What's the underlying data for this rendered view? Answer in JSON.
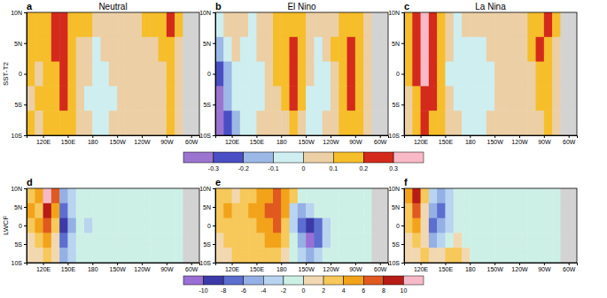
{
  "chart_data": [
    {
      "type": "contour",
      "label": "a",
      "title": "Neutral",
      "ylabel": "SST-T2",
      "x": [
        105,
        115,
        125,
        135,
        145,
        155,
        165,
        175,
        185,
        195,
        205,
        215,
        225,
        235,
        245,
        255,
        265,
        275,
        285,
        295,
        305
      ],
      "y": [
        8,
        4,
        0,
        -4,
        -8
      ],
      "cells": [
        [
          0.15,
          0.12,
          0.1,
          0.22,
          0.25,
          0.15,
          0.12,
          0.15,
          0.05,
          0.05,
          0.05,
          0.05,
          0.05,
          0.05,
          0.1,
          0.12,
          0.15,
          0.22,
          0.1,
          null,
          null
        ],
        [
          0.12,
          0.15,
          0.1,
          0.2,
          0.25,
          0.12,
          0.08,
          0.05,
          -0.05,
          0.05,
          0.05,
          0.05,
          0.05,
          0.05,
          0.05,
          0.05,
          0.12,
          0.15,
          0.05,
          null,
          null
        ],
        [
          0.1,
          0.05,
          0.12,
          0.18,
          0.25,
          0.12,
          0.05,
          0.05,
          -0.05,
          -0.05,
          0.05,
          0.05,
          0.05,
          0.05,
          0.05,
          0.05,
          0.05,
          0.12,
          0.05,
          null,
          null
        ],
        [
          0.05,
          0.1,
          0.15,
          0.15,
          0.22,
          0.15,
          0.05,
          -0.05,
          -0.05,
          -0.05,
          -0.05,
          0.05,
          0.05,
          0.05,
          0.05,
          0.05,
          0.05,
          0.1,
          0.05,
          null,
          null
        ],
        [
          0.12,
          0.05,
          0.18,
          0.12,
          0.15,
          0.12,
          0.05,
          0.05,
          -0.05,
          -0.05,
          0.05,
          0.05,
          0.05,
          0.05,
          0.05,
          0.05,
          0.05,
          0.1,
          0.05,
          null,
          null
        ]
      ],
      "xlim": [
        100,
        310
      ],
      "ylim": [
        -10,
        10
      ],
      "xticks": [
        {
          "value": 120,
          "label": "120E"
        },
        {
          "value": 150,
          "label": "150E"
        },
        180,
        {
          "value": 210,
          "label": "150W"
        },
        {
          "value": 240,
          "label": "120W"
        },
        {
          "value": 270,
          "label": "90W"
        },
        {
          "value": 300,
          "label": "60W"
        }
      ],
      "yticks": [
        {
          "value": 10,
          "label": "10N"
        },
        {
          "value": 5,
          "label": "5N"
        },
        0,
        {
          "value": -5,
          "label": "5S"
        },
        {
          "value": -10,
          "label": "10S"
        }
      ]
    },
    {
      "type": "contour",
      "label": "b",
      "title": "El Nino",
      "x": [
        105,
        115,
        125,
        135,
        145,
        155,
        165,
        175,
        185,
        195,
        205,
        215,
        225,
        235,
        245,
        255,
        265,
        275,
        285,
        295,
        305
      ],
      "y": [
        8,
        4,
        0,
        -4,
        -8
      ],
      "cells": [
        [
          -0.05,
          0.05,
          0.05,
          0.05,
          -0.05,
          0.05,
          0.05,
          0.12,
          0.12,
          0.15,
          0.1,
          0.05,
          0.05,
          0.05,
          0.05,
          0.1,
          0.15,
          0.12,
          0.05,
          null,
          null
        ],
        [
          -0.15,
          -0.05,
          0.05,
          -0.05,
          -0.05,
          0.05,
          0.05,
          0.12,
          0.15,
          0.2,
          0.1,
          0.05,
          -0.05,
          0.05,
          0.1,
          0.15,
          0.22,
          0.15,
          0.05,
          null,
          null
        ],
        [
          -0.25,
          -0.15,
          -0.05,
          -0.05,
          -0.05,
          -0.05,
          0.05,
          0.1,
          0.15,
          0.25,
          0.12,
          0.05,
          -0.05,
          -0.05,
          0.05,
          0.15,
          0.25,
          0.12,
          0.05,
          null,
          null
        ],
        [
          -0.32,
          -0.2,
          -0.1,
          -0.05,
          -0.05,
          -0.05,
          0.05,
          0.05,
          0.12,
          0.2,
          0.1,
          -0.05,
          -0.05,
          -0.05,
          0.05,
          0.12,
          0.2,
          0.1,
          0.05,
          null,
          null
        ],
        [
          -0.35,
          -0.25,
          -0.12,
          -0.05,
          -0.05,
          0.05,
          0.05,
          0.05,
          0.05,
          0.12,
          0.05,
          -0.05,
          -0.05,
          0.05,
          0.05,
          0.1,
          0.15,
          0.1,
          0.05,
          null,
          null
        ]
      ],
      "xlim": [
        100,
        310
      ],
      "ylim": [
        -10,
        10
      ],
      "xticks": [
        {
          "value": 120,
          "label": "120E"
        },
        {
          "value": 150,
          "label": "150E"
        },
        180,
        {
          "value": 210,
          "label": "150W"
        },
        {
          "value": 240,
          "label": "120W"
        },
        {
          "value": 270,
          "label": "90W"
        },
        {
          "value": 300,
          "label": "60W"
        }
      ],
      "yticks": [
        {
          "value": 10,
          "label": "10N"
        },
        {
          "value": 5,
          "label": "5N"
        },
        0,
        {
          "value": -5,
          "label": "5S"
        },
        {
          "value": -10,
          "label": "10S"
        }
      ],
      "colorbar": {
        "range": [
          -0.4,
          0.4
        ],
        "ticks": [
          -0.3,
          -0.2,
          -0.1,
          0,
          0.1,
          0.2,
          0.3
        ],
        "colors": [
          "#9b74d0",
          "#4a4ec4",
          "#9cb8e6",
          "#cfeef0",
          "#eccfa4",
          "#f6be2a",
          "#d42a1c",
          "#f9b9c6"
        ]
      }
    },
    {
      "type": "contour",
      "label": "c",
      "title": "La Nina",
      "x": [
        105,
        115,
        125,
        135,
        145,
        155,
        165,
        175,
        185,
        195,
        205,
        215,
        225,
        235,
        245,
        255,
        265,
        275,
        285,
        295,
        305
      ],
      "y": [
        8,
        4,
        0,
        -4,
        -8
      ],
      "cells": [
        [
          0.15,
          0.25,
          0.32,
          0.2,
          0.12,
          0.05,
          -0.05,
          0.05,
          0.05,
          0.05,
          0.05,
          0.05,
          0.05,
          0.05,
          0.05,
          0.12,
          0.15,
          0.25,
          0.1,
          null,
          null
        ],
        [
          0.12,
          0.2,
          0.3,
          0.22,
          0.1,
          0.05,
          -0.05,
          -0.05,
          -0.05,
          -0.05,
          0.05,
          0.05,
          0.05,
          0.05,
          0.05,
          0.12,
          0.2,
          0.15,
          0.05,
          null,
          null
        ],
        [
          0.1,
          0.22,
          0.35,
          0.25,
          0.1,
          -0.05,
          -0.05,
          -0.05,
          -0.05,
          -0.05,
          -0.05,
          0.05,
          0.05,
          0.05,
          0.05,
          0.05,
          0.15,
          0.12,
          0.05,
          null,
          null
        ],
        [
          0.05,
          0.15,
          0.25,
          0.2,
          0.12,
          0.05,
          -0.05,
          -0.05,
          -0.05,
          -0.05,
          -0.05,
          0.05,
          0.05,
          0.05,
          0.05,
          0.05,
          0.1,
          0.1,
          0.05,
          null,
          null
        ],
        [
          0.05,
          0.1,
          0.2,
          0.15,
          0.12,
          0.05,
          0.05,
          -0.05,
          -0.05,
          -0.05,
          0.05,
          0.05,
          0.05,
          0.05,
          0.05,
          0.05,
          0.05,
          0.1,
          0.05,
          null,
          null
        ]
      ],
      "xlim": [
        100,
        310
      ],
      "ylim": [
        -10,
        10
      ],
      "xticks": [
        {
          "value": 120,
          "label": "120E"
        },
        {
          "value": 150,
          "label": "150E"
        },
        180,
        {
          "value": 210,
          "label": "150W"
        },
        {
          "value": 240,
          "label": "120W"
        },
        {
          "value": 270,
          "label": "90W"
        },
        {
          "value": 300,
          "label": "60W"
        }
      ],
      "yticks": [
        {
          "value": 10,
          "label": "10N"
        },
        {
          "value": 5,
          "label": "5N"
        },
        0,
        {
          "value": -5,
          "label": "5S"
        },
        {
          "value": -10,
          "label": "10S"
        }
      ]
    },
    {
      "type": "contour",
      "label": "d",
      "ylabel": "LWCF",
      "x": [
        105,
        115,
        125,
        135,
        145,
        155,
        165,
        175,
        185,
        195,
        205,
        215,
        225,
        235,
        245,
        255,
        265,
        275,
        285,
        295,
        305
      ],
      "y": [
        8,
        4,
        0,
        -4,
        -8
      ],
      "cells": [
        [
          3,
          5,
          11,
          6,
          -6,
          -3,
          -1,
          -1,
          -1,
          -1,
          -1,
          -1,
          -1,
          -1,
          -1,
          -1,
          -1,
          -1,
          -1,
          null,
          null
        ],
        [
          5,
          3,
          8,
          5,
          -8,
          -4,
          -1,
          -1,
          -1,
          -1,
          -1,
          -1,
          -1,
          -1,
          -1,
          -1,
          -1,
          -1,
          -1,
          null,
          null
        ],
        [
          3,
          5,
          7,
          3,
          -9,
          -5,
          -1,
          -3,
          -1,
          -1,
          -1,
          -1,
          -1,
          -1,
          -1,
          -1,
          -1,
          -1,
          -1,
          null,
          null
        ],
        [
          1,
          3,
          5,
          1,
          -8,
          -4,
          -1,
          -1,
          -1,
          -1,
          -1,
          -1,
          -1,
          -1,
          -1,
          -1,
          -1,
          -1,
          -1,
          null,
          null
        ],
        [
          1,
          1,
          3,
          1,
          -5,
          -3,
          -1,
          -1,
          -1,
          -1,
          -1,
          -1,
          -1,
          -1,
          -1,
          -1,
          -1,
          -1,
          -1,
          null,
          null
        ]
      ],
      "xlim": [
        100,
        310
      ],
      "ylim": [
        -10,
        10
      ],
      "xticks": [
        {
          "value": 120,
          "label": "120E"
        },
        {
          "value": 150,
          "label": "150E"
        },
        180,
        {
          "value": 210,
          "label": "150W"
        },
        {
          "value": 240,
          "label": "120W"
        },
        {
          "value": 270,
          "label": "90W"
        },
        {
          "value": 300,
          "label": "60W"
        }
      ],
      "yticks": [
        {
          "value": 10,
          "label": "10N"
        },
        {
          "value": 5,
          "label": "5N"
        },
        0,
        {
          "value": -5,
          "label": "5S"
        },
        {
          "value": -10,
          "label": "10S"
        }
      ]
    },
    {
      "type": "contour",
      "label": "e",
      "x": [
        105,
        115,
        125,
        135,
        145,
        155,
        165,
        175,
        185,
        195,
        205,
        215,
        225,
        235,
        245,
        255,
        265,
        275,
        285,
        295,
        305
      ],
      "y": [
        8,
        4,
        0,
        -4,
        -8
      ],
      "cells": [
        [
          3,
          3,
          1,
          3,
          3,
          5,
          5,
          7,
          5,
          3,
          -1,
          -1,
          -1,
          -1,
          -1,
          -1,
          -1,
          -1,
          -1,
          null,
          null
        ],
        [
          3,
          5,
          3,
          3,
          5,
          5,
          7,
          7,
          5,
          -3,
          -5,
          -3,
          -1,
          -1,
          -1,
          -1,
          -1,
          -1,
          -1,
          null,
          null
        ],
        [
          3,
          3,
          3,
          3,
          3,
          5,
          5,
          7,
          3,
          -3,
          -7,
          -9,
          -7,
          -3,
          -1,
          -1,
          -1,
          -1,
          -1,
          null,
          null
        ],
        [
          1,
          3,
          3,
          3,
          3,
          3,
          5,
          5,
          3,
          -1,
          -5,
          -11,
          -7,
          -3,
          -1,
          -1,
          -1,
          -1,
          -1,
          null,
          null
        ],
        [
          1,
          1,
          3,
          3,
          3,
          3,
          3,
          3,
          1,
          -1,
          -3,
          -5,
          -3,
          -1,
          -1,
          -1,
          -1,
          -1,
          -1,
          null,
          null
        ]
      ],
      "xlim": [
        100,
        310
      ],
      "ylim": [
        -10,
        10
      ],
      "xticks": [
        {
          "value": 120,
          "label": "120E"
        },
        {
          "value": 150,
          "label": "150E"
        },
        180,
        {
          "value": 210,
          "label": "150W"
        },
        {
          "value": 240,
          "label": "120W"
        },
        {
          "value": 270,
          "label": "90W"
        },
        {
          "value": 300,
          "label": "60W"
        }
      ],
      "yticks": [
        {
          "value": 10,
          "label": "10N"
        },
        {
          "value": 5,
          "label": "5N"
        },
        0,
        {
          "value": -5,
          "label": "5S"
        },
        {
          "value": -10,
          "label": "10S"
        }
      ],
      "colorbar": {
        "range": [
          -12,
          12
        ],
        "ticks": [
          -10,
          -8,
          -6,
          -4,
          -2,
          0,
          2,
          4,
          6,
          8,
          10
        ],
        "colors": [
          "#9a6fd4",
          "#3c3aa8",
          "#5c6ed0",
          "#94b0e4",
          "#b8d4f0",
          "#cdf0e6",
          "#f2d8b0",
          "#f7c85a",
          "#f2a31a",
          "#e05a20",
          "#b81c16",
          "#f7b9c8"
        ]
      }
    },
    {
      "type": "contour",
      "label": "f",
      "x": [
        105,
        115,
        125,
        135,
        145,
        155,
        165,
        175,
        185,
        195,
        205,
        215,
        225,
        235,
        245,
        255,
        265,
        275,
        285,
        295,
        305
      ],
      "y": [
        8,
        4,
        0,
        -4,
        -8
      ],
      "cells": [
        [
          5,
          9,
          3,
          -3,
          -5,
          -3,
          -1,
          -1,
          -1,
          -1,
          -1,
          -1,
          -1,
          -1,
          -1,
          -1,
          -1,
          -1,
          -1,
          null,
          null
        ],
        [
          3,
          7,
          1,
          -5,
          -7,
          -3,
          -1,
          -1,
          -1,
          -1,
          -1,
          -1,
          -1,
          -1,
          -1,
          -1,
          -1,
          -1,
          -1,
          null,
          null
        ],
        [
          3,
          5,
          1,
          -7,
          -5,
          -3,
          -1,
          -1,
          -1,
          -1,
          -1,
          -1,
          -1,
          -1,
          -1,
          -1,
          -1,
          -1,
          -1,
          null,
          null
        ],
        [
          1,
          3,
          1,
          -5,
          -3,
          -1,
          1,
          -1,
          -1,
          -1,
          -1,
          -1,
          -1,
          -1,
          -1,
          -1,
          -1,
          -1,
          -1,
          null,
          null
        ],
        [
          1,
          1,
          3,
          1,
          1,
          3,
          3,
          1,
          -1,
          -1,
          -1,
          -1,
          -1,
          -1,
          -1,
          -1,
          -1,
          -1,
          -1,
          null,
          null
        ]
      ],
      "xlim": [
        100,
        310
      ],
      "ylim": [
        -10,
        10
      ],
      "xticks": [
        {
          "value": 120,
          "label": "120E"
        },
        {
          "value": 150,
          "label": "150E"
        },
        180,
        {
          "value": 210,
          "label": "150W"
        },
        {
          "value": 240,
          "label": "120W"
        },
        {
          "value": 270,
          "label": "90W"
        },
        {
          "value": 300,
          "label": "60W"
        }
      ],
      "yticks": [
        {
          "value": 10,
          "label": "10N"
        },
        {
          "value": 5,
          "label": "5N"
        },
        0,
        {
          "value": -5,
          "label": "5S"
        },
        {
          "value": -10,
          "label": "10S"
        }
      ]
    }
  ]
}
